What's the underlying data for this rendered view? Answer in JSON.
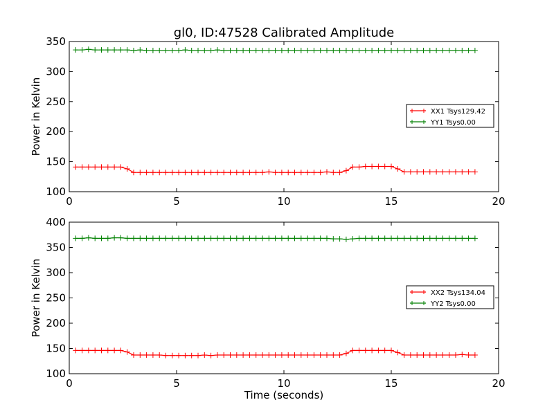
{
  "title": "gl0, ID:47528 Calibrated Amplitude",
  "colors": {
    "xx": "#ff0000",
    "yy": "#008000"
  },
  "chart_data": [
    {
      "type": "line",
      "title": "gl0, ID:47528 Calibrated Amplitude",
      "xlabel": "",
      "ylabel": "Power in Kelvin",
      "xlim": [
        0,
        20
      ],
      "ylim": [
        100,
        350
      ],
      "xticks": [
        0,
        5,
        10,
        15,
        20
      ],
      "yticks": [
        100,
        150,
        200,
        250,
        300,
        350
      ],
      "grid": false,
      "legend_position": "right",
      "series": [
        {
          "name": "XX1 Tsys129.42",
          "color": "#ff0000",
          "x": [
            0.3,
            0.6,
            0.9,
            1.2,
            1.5,
            1.8,
            2.1,
            2.4,
            2.7,
            3.0,
            3.3,
            3.6,
            3.9,
            4.2,
            4.5,
            4.8,
            5.1,
            5.4,
            5.7,
            6.0,
            6.3,
            6.6,
            6.9,
            7.2,
            7.5,
            7.8,
            8.1,
            8.4,
            8.7,
            9.0,
            9.3,
            9.6,
            9.9,
            10.2,
            10.5,
            10.8,
            11.1,
            11.4,
            11.7,
            12.0,
            12.3,
            12.6,
            12.9,
            13.2,
            13.5,
            13.8,
            14.1,
            14.4,
            14.7,
            15.0,
            15.3,
            15.6,
            15.9,
            16.2,
            16.5,
            16.8,
            17.1,
            17.4,
            17.7,
            18.0,
            18.3,
            18.6,
            18.9
          ],
          "values": [
            141,
            141,
            141,
            141,
            141,
            141,
            141,
            141,
            138,
            132,
            132,
            132,
            132,
            132,
            132,
            132,
            132,
            132,
            132,
            132,
            132,
            132,
            132,
            132,
            132,
            132,
            132,
            132,
            132,
            132,
            133,
            132,
            132,
            132,
            132,
            132,
            132,
            132,
            132,
            133,
            132,
            132,
            135,
            141,
            141,
            142,
            142,
            142,
            142,
            142,
            138,
            133,
            133,
            133,
            133,
            133,
            133,
            133,
            133,
            133,
            133,
            133,
            133
          ]
        },
        {
          "name": "YY1 Tsys0.00",
          "color": "#008000",
          "x": [
            0.3,
            0.6,
            0.9,
            1.2,
            1.5,
            1.8,
            2.1,
            2.4,
            2.7,
            3.0,
            3.3,
            3.6,
            3.9,
            4.2,
            4.5,
            4.8,
            5.1,
            5.4,
            5.7,
            6.0,
            6.3,
            6.6,
            6.9,
            7.2,
            7.5,
            7.8,
            8.1,
            8.4,
            8.7,
            9.0,
            9.3,
            9.6,
            9.9,
            10.2,
            10.5,
            10.8,
            11.1,
            11.4,
            11.7,
            12.0,
            12.3,
            12.6,
            12.9,
            13.2,
            13.5,
            13.8,
            14.1,
            14.4,
            14.7,
            15.0,
            15.3,
            15.6,
            15.9,
            16.2,
            16.5,
            16.8,
            17.1,
            17.4,
            17.7,
            18.0,
            18.3,
            18.6,
            18.9
          ],
          "values": [
            336,
            336,
            337,
            336,
            336,
            336,
            336,
            336,
            336,
            335,
            336,
            335,
            335,
            335,
            335,
            335,
            335,
            336,
            335,
            335,
            335,
            335,
            336,
            335,
            335,
            335,
            335,
            335,
            335,
            335,
            335,
            335,
            335,
            335,
            335,
            335,
            335,
            335,
            335,
            335,
            335,
            335,
            335,
            335,
            335,
            335,
            335,
            335,
            335,
            335,
            335,
            335,
            335,
            335,
            335,
            335,
            335,
            335,
            335,
            335,
            335,
            335,
            335
          ]
        }
      ]
    },
    {
      "type": "line",
      "title": "",
      "xlabel": "Time (seconds)",
      "ylabel": "Power in Kelvin",
      "xlim": [
        0,
        20
      ],
      "ylim": [
        100,
        400
      ],
      "xticks": [
        0,
        5,
        10,
        15,
        20
      ],
      "yticks": [
        100,
        150,
        200,
        250,
        300,
        350,
        400
      ],
      "grid": false,
      "legend_position": "right",
      "series": [
        {
          "name": "XX2 Tsys134.04",
          "color": "#ff0000",
          "x": [
            0.3,
            0.6,
            0.9,
            1.2,
            1.5,
            1.8,
            2.1,
            2.4,
            2.7,
            3.0,
            3.3,
            3.6,
            3.9,
            4.2,
            4.5,
            4.8,
            5.1,
            5.4,
            5.7,
            6.0,
            6.3,
            6.6,
            6.9,
            7.2,
            7.5,
            7.8,
            8.1,
            8.4,
            8.7,
            9.0,
            9.3,
            9.6,
            9.9,
            10.2,
            10.5,
            10.8,
            11.1,
            11.4,
            11.7,
            12.0,
            12.3,
            12.6,
            12.9,
            13.2,
            13.5,
            13.8,
            14.1,
            14.4,
            14.7,
            15.0,
            15.3,
            15.6,
            15.9,
            16.2,
            16.5,
            16.8,
            17.1,
            17.4,
            17.7,
            18.0,
            18.3,
            18.6,
            18.9
          ],
          "values": [
            146,
            146,
            146,
            146,
            146,
            146,
            146,
            146,
            143,
            137,
            137,
            137,
            137,
            137,
            136,
            136,
            136,
            136,
            136,
            136,
            137,
            136,
            137,
            137,
            137,
            137,
            137,
            137,
            137,
            137,
            137,
            137,
            137,
            137,
            137,
            137,
            137,
            137,
            137,
            137,
            137,
            137,
            140,
            146,
            146,
            146,
            146,
            146,
            146,
            146,
            142,
            137,
            137,
            137,
            137,
            137,
            137,
            137,
            137,
            137,
            138,
            137,
            137
          ]
        },
        {
          "name": "YY2 Tsys0.00",
          "color": "#008000",
          "x": [
            0.3,
            0.6,
            0.9,
            1.2,
            1.5,
            1.8,
            2.1,
            2.4,
            2.7,
            3.0,
            3.3,
            3.6,
            3.9,
            4.2,
            4.5,
            4.8,
            5.1,
            5.4,
            5.7,
            6.0,
            6.3,
            6.6,
            6.9,
            7.2,
            7.5,
            7.8,
            8.1,
            8.4,
            8.7,
            9.0,
            9.3,
            9.6,
            9.9,
            10.2,
            10.5,
            10.8,
            11.1,
            11.4,
            11.7,
            12.0,
            12.3,
            12.6,
            12.9,
            13.2,
            13.5,
            13.8,
            14.1,
            14.4,
            14.7,
            15.0,
            15.3,
            15.6,
            15.9,
            16.2,
            16.5,
            16.8,
            17.1,
            17.4,
            17.7,
            18.0,
            18.3,
            18.6,
            18.9
          ],
          "values": [
            368,
            368,
            369,
            368,
            368,
            368,
            369,
            369,
            368,
            368,
            368,
            368,
            368,
            368,
            368,
            368,
            368,
            368,
            368,
            368,
            368,
            368,
            368,
            368,
            368,
            368,
            368,
            368,
            368,
            368,
            368,
            368,
            368,
            368,
            368,
            368,
            368,
            368,
            368,
            368,
            367,
            367,
            366,
            367,
            368,
            368,
            368,
            368,
            368,
            368,
            368,
            368,
            368,
            368,
            368,
            368,
            368,
            368,
            368,
            368,
            368,
            368,
            368
          ]
        }
      ]
    }
  ]
}
